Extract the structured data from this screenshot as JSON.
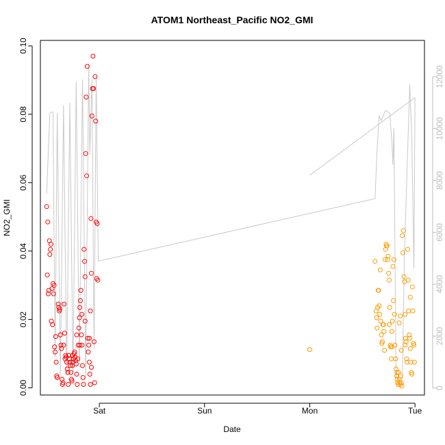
{
  "chart_data": {
    "type": "scatter",
    "title": "ATOM1 Northeast_Pacific NO2_GMI",
    "xlabel": "Date",
    "ylabel": "NO2_GMI",
    "x_ticks": [
      {
        "label": "Sat",
        "value": 1.0
      },
      {
        "label": "Sun",
        "value": 2.0
      },
      {
        "label": "Mon",
        "value": 3.0
      },
      {
        "label": "Tue",
        "value": 4.0
      }
    ],
    "xlim": [
      0.44,
      4.09
    ],
    "ylim": [
      -0.0021,
      0.1016
    ],
    "y_ticks": [
      0.0,
      0.02,
      0.04,
      0.06,
      0.08,
      0.1
    ],
    "y_tick_labels": [
      "0.00",
      "0.02",
      "0.04",
      "0.06",
      "0.08",
      "0.10"
    ],
    "y2_lim": [
      -270,
      13400
    ],
    "y2_ticks": [
      0,
      2000,
      4000,
      6000,
      8000,
      10000,
      12000
    ],
    "grid": false,
    "legend": "none",
    "colors": {
      "series1": "#ff0000",
      "series2": "#ff9900",
      "altitude": "#c8c8c8",
      "axis": "#000000",
      "axis2": "#bbbbbb"
    },
    "series": [
      {
        "color": "#ff0000",
        "points": [
          [
            0.5,
            0.053
          ],
          [
            0.51,
            0.0485
          ],
          [
            0.505,
            0.033
          ],
          [
            0.52,
            0.0285
          ],
          [
            0.515,
            0.0275
          ],
          [
            0.53,
            0.039
          ],
          [
            0.525,
            0.043
          ],
          [
            0.54,
            0.042
          ],
          [
            0.535,
            0.0405
          ],
          [
            0.55,
            0.029
          ],
          [
            0.545,
            0.0195
          ],
          [
            0.555,
            0.0185
          ],
          [
            0.56,
            0.0305
          ],
          [
            0.565,
            0.0275
          ],
          [
            0.57,
            0.03
          ],
          [
            0.575,
            0.012
          ],
          [
            0.58,
            0.0105
          ],
          [
            0.585,
            0.015
          ],
          [
            0.59,
            0.0075
          ],
          [
            0.595,
            0.0035
          ],
          [
            0.6,
            0.003
          ],
          [
            0.61,
            0.0245
          ],
          [
            0.615,
            0.0235
          ],
          [
            0.62,
            0.0225
          ],
          [
            0.625,
            0.023
          ],
          [
            0.63,
            0.0155
          ],
          [
            0.635,
            0.0125
          ],
          [
            0.64,
            0.0115
          ],
          [
            0.645,
            0.0025
          ],
          [
            0.65,
            0.001
          ],
          [
            0.655,
            0.0015
          ],
          [
            0.66,
            0.0125
          ],
          [
            0.665,
            0.0245
          ],
          [
            0.67,
            0.016
          ],
          [
            0.675,
            0.0085
          ],
          [
            0.68,
            0.0095
          ],
          [
            0.685,
            0.009
          ],
          [
            0.69,
            0.0075
          ],
          [
            0.695,
            0.0055
          ],
          [
            0.7,
            0.0045
          ],
          [
            0.705,
            0.001
          ],
          [
            0.71,
            0.0095
          ],
          [
            0.715,
            0.0085
          ],
          [
            0.72,
            0.0075
          ],
          [
            0.725,
            0.0065
          ],
          [
            0.73,
            0.0045
          ],
          [
            0.735,
            0.0025
          ],
          [
            0.74,
            0.002
          ],
          [
            0.745,
            0.0065
          ],
          [
            0.75,
            0.0075
          ],
          [
            0.755,
            0.0085
          ],
          [
            0.76,
            0.01
          ],
          [
            0.765,
            0.0105
          ],
          [
            0.77,
            0.009
          ],
          [
            0.775,
            0.008
          ],
          [
            0.78,
            0.007
          ],
          [
            0.785,
            0.004
          ],
          [
            0.79,
            0.001
          ],
          [
            0.795,
            0.0085
          ],
          [
            0.8,
            0.0125
          ],
          [
            0.805,
            0.0175
          ],
          [
            0.81,
            0.0205
          ],
          [
            0.815,
            0.0235
          ],
          [
            0.82,
            0.0255
          ],
          [
            0.825,
            0.0285
          ],
          [
            0.83,
            0.0155
          ],
          [
            0.835,
            0.0125
          ],
          [
            0.84,
            0.0065
          ],
          [
            0.845,
            0.003
          ],
          [
            0.85,
            0.001
          ],
          [
            0.855,
            0.0405
          ],
          [
            0.86,
            0.037
          ],
          [
            0.865,
            0.0325
          ],
          [
            0.87,
            0.0685
          ],
          [
            0.875,
            0.085
          ],
          [
            0.88,
            0.062
          ],
          [
            0.885,
            0.094
          ],
          [
            0.89,
            0.0145
          ],
          [
            0.895,
            0.0105
          ],
          [
            0.9,
            0.0125
          ],
          [
            0.905,
            0.0075
          ],
          [
            0.91,
            0.004
          ],
          [
            0.915,
            0.001
          ],
          [
            0.92,
            0.0495
          ],
          [
            0.925,
            0.0335
          ],
          [
            0.93,
            0.0795
          ],
          [
            0.935,
            0.0875
          ],
          [
            0.94,
            0.097
          ],
          [
            0.945,
            0.0875
          ],
          [
            0.95,
            0.0135
          ],
          [
            0.955,
            0.0015
          ],
          [
            0.96,
            0.091
          ],
          [
            0.965,
            0.078
          ],
          [
            0.97,
            0.0485
          ],
          [
            0.975,
            0.032
          ],
          [
            0.98,
            0.048
          ],
          [
            0.985,
            0.0315
          ],
          [
            0.915,
            0.0225
          ],
          [
            0.905,
            0.0145
          ],
          [
            0.925,
            0.006
          ],
          [
            0.865,
            0.0195
          ],
          [
            0.835,
            0.0215
          ],
          [
            0.815,
            0.0125
          ],
          [
            0.785,
            0.0155
          ],
          [
            0.745,
            0.0095
          ]
        ]
      },
      {
        "color": "#ff9900",
        "points": [
          [
            3.0,
            0.0112
          ],
          [
            3.62,
            0.037
          ],
          [
            3.63,
            0.0225
          ],
          [
            3.635,
            0.0205
          ],
          [
            3.64,
            0.0175
          ],
          [
            3.645,
            0.0235
          ],
          [
            3.65,
            0.0285
          ],
          [
            3.655,
            0.0285
          ],
          [
            3.66,
            0.024
          ],
          [
            3.665,
            0.0215
          ],
          [
            3.67,
            0.0345
          ],
          [
            3.675,
            0.0195
          ],
          [
            3.68,
            0.0155
          ],
          [
            3.685,
            0.013
          ],
          [
            3.69,
            0.0135
          ],
          [
            3.695,
            0.0185
          ],
          [
            3.7,
            0.0185
          ],
          [
            3.705,
            0.0165
          ],
          [
            3.71,
            0.011
          ],
          [
            3.715,
            0.0375
          ],
          [
            3.72,
            0.0405
          ],
          [
            3.725,
            0.042
          ],
          [
            3.73,
            0.0415
          ],
          [
            3.735,
            0.0415
          ],
          [
            3.74,
            0.0375
          ],
          [
            3.745,
            0.0385
          ],
          [
            3.75,
            0.0335
          ],
          [
            3.755,
            0.0315
          ],
          [
            3.76,
            0.0235
          ],
          [
            3.765,
            0.0125
          ],
          [
            3.77,
            0.012
          ],
          [
            3.775,
            0.0085
          ],
          [
            3.78,
            0.0165
          ],
          [
            3.785,
            0.0195
          ],
          [
            3.79,
            0.0355
          ],
          [
            3.795,
            0.0255
          ],
          [
            3.8,
            0.0375
          ],
          [
            3.805,
            0.0215
          ],
          [
            3.81,
            0.0125
          ],
          [
            3.815,
            0.0085
          ],
          [
            3.82,
            0.0055
          ],
          [
            3.825,
            0.0035
          ],
          [
            3.83,
            0.0025
          ],
          [
            3.835,
            0.0015
          ],
          [
            3.84,
            0.001
          ],
          [
            3.845,
            0.0045
          ],
          [
            3.85,
            0.0025
          ],
          [
            3.855,
            0.0015
          ],
          [
            3.86,
            0.001
          ],
          [
            3.865,
            0.0035
          ],
          [
            3.87,
            0.0015
          ],
          [
            3.875,
            0.0005
          ],
          [
            3.88,
            0.0445
          ],
          [
            3.885,
            0.0395
          ],
          [
            3.89,
            0.046
          ],
          [
            3.895,
            0.0325
          ],
          [
            3.9,
            0.031
          ],
          [
            3.905,
            0.0215
          ],
          [
            3.91,
            0.0145
          ],
          [
            3.915,
            0.0135
          ],
          [
            3.92,
            0.0085
          ],
          [
            3.925,
            0.0075
          ],
          [
            3.93,
            0.0405
          ],
          [
            3.935,
            0.0315
          ],
          [
            3.94,
            0.0225
          ],
          [
            3.945,
            0.0155
          ],
          [
            3.95,
            0.0145
          ],
          [
            3.955,
            0.0115
          ],
          [
            3.96,
            0.0075
          ],
          [
            3.965,
            0.0045
          ],
          [
            3.97,
            0.004
          ],
          [
            3.975,
            0.0295
          ],
          [
            3.98,
            0.0225
          ],
          [
            3.985,
            0.013
          ],
          [
            3.99,
            0.0125
          ],
          [
            3.995,
            0.0075
          ],
          [
            3.85,
            0.019
          ],
          [
            3.87,
            0.011
          ],
          [
            3.755,
            0.0185
          ],
          [
            3.78,
            0.012
          ],
          [
            3.86,
            0.021
          ],
          [
            3.955,
            0.0265
          ],
          [
            3.905,
            0.0125
          ],
          [
            3.83,
            0.0045
          ]
        ]
      }
    ],
    "altitude_line": {
      "color": "#c8c8c8",
      "axis": "right",
      "points": [
        [
          0.5,
          7500
        ],
        [
          0.53,
          10600
        ],
        [
          0.56,
          10650
        ],
        [
          0.58,
          1200
        ],
        [
          0.6,
          10600
        ],
        [
          0.63,
          500
        ],
        [
          0.66,
          10900
        ],
        [
          0.69,
          500
        ],
        [
          0.72,
          11000
        ],
        [
          0.75,
          500
        ],
        [
          0.78,
          11800
        ],
        [
          0.81,
          800
        ],
        [
          0.84,
          11900
        ],
        [
          0.87,
          400
        ],
        [
          0.9,
          12500
        ],
        [
          0.91,
          9000
        ],
        [
          0.93,
          11900
        ],
        [
          0.95,
          1500
        ],
        [
          0.97,
          12000
        ],
        [
          0.99,
          4900
        ],
        [
          1.0,
          4900
        ],
        [
          3.62,
          7300
        ],
        [
          3.64,
          9200
        ],
        [
          3.66,
          10500
        ],
        [
          3.68,
          10300
        ],
        [
          3.72,
          10700
        ],
        [
          3.76,
          10600
        ],
        [
          3.78,
          9500
        ],
        [
          3.79,
          8600
        ],
        [
          3.8,
          10000
        ],
        [
          3.82,
          400
        ],
        [
          3.85,
          300
        ],
        [
          3.88,
          400
        ],
        [
          3.9,
          5200
        ],
        [
          3.95,
          11700
        ],
        [
          3.97,
          9500
        ],
        [
          3.99,
          4600
        ],
        [
          4.0,
          11200
        ]
      ]
    },
    "altitude_line2": {
      "color": "#c8c8c8",
      "axis": "right",
      "points": [
        [
          3.0,
          8200
        ],
        [
          4.0,
          11200
        ]
      ]
    }
  }
}
